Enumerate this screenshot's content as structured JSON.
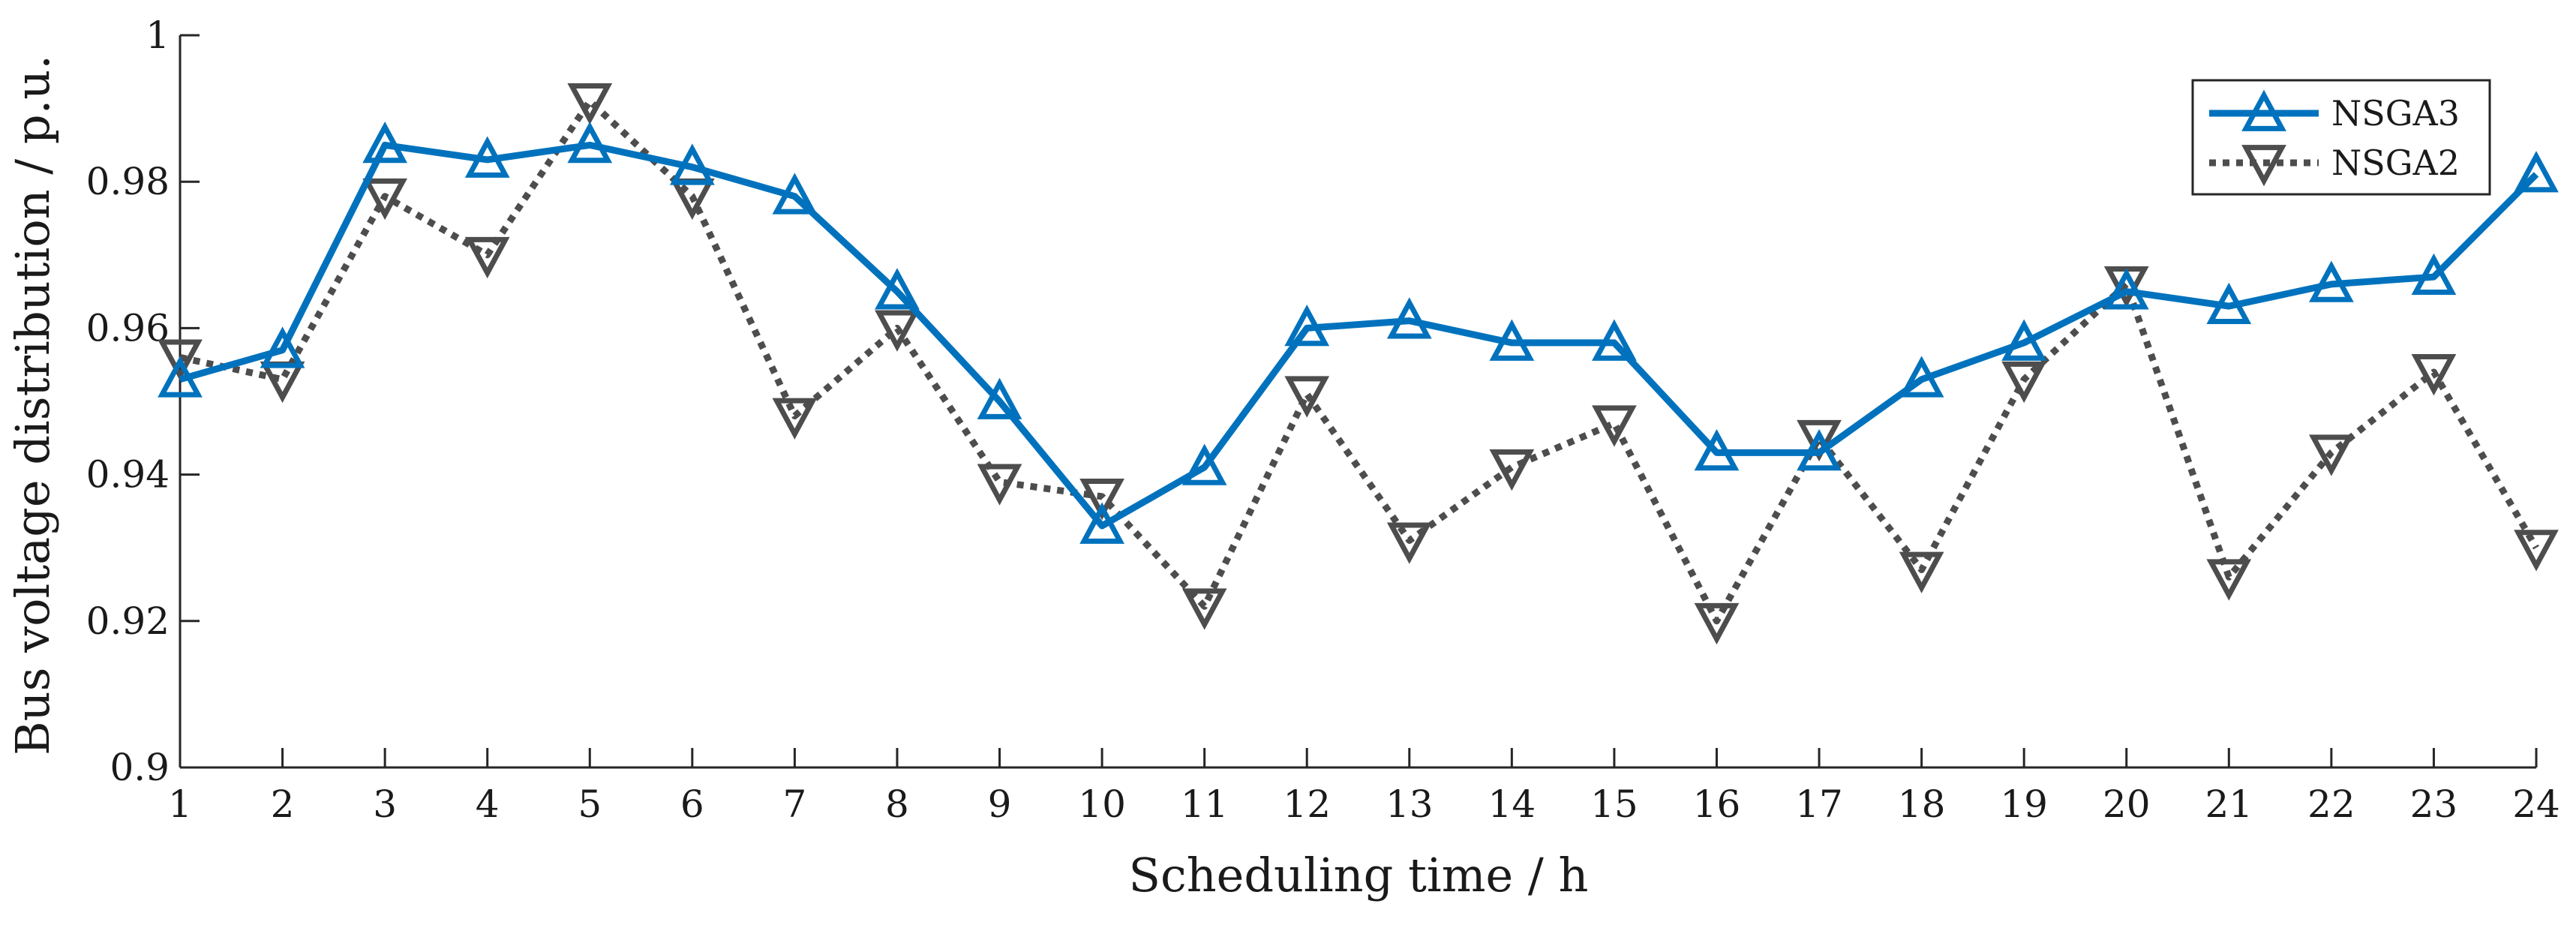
{
  "chart_data": {
    "type": "line",
    "title": "",
    "xlabel": "Scheduling time / h",
    "ylabel": "Bus voltage distribution / p.u.",
    "x": [
      1,
      2,
      3,
      4,
      5,
      6,
      7,
      8,
      9,
      10,
      11,
      12,
      13,
      14,
      15,
      16,
      17,
      18,
      19,
      20,
      21,
      22,
      23,
      24
    ],
    "xlim": [
      1,
      24
    ],
    "ylim": [
      0.9,
      1.0
    ],
    "yticks": [
      0.9,
      0.92,
      0.94,
      0.96,
      0.98,
      1
    ],
    "ytick_labels": [
      "0.9",
      "0.92",
      "0.94",
      "0.96",
      "0.98",
      "1"
    ],
    "xtick_labels": [
      "1",
      "2",
      "3",
      "4",
      "5",
      "6",
      "7",
      "8",
      "9",
      "10",
      "11",
      "12",
      "13",
      "14",
      "15",
      "16",
      "17",
      "18",
      "19",
      "20",
      "21",
      "22",
      "23",
      "24"
    ],
    "grid": false,
    "legend_position": "top-right",
    "series": [
      {
        "name": "NSGA3",
        "color": "#0072BD",
        "line_style": "solid",
        "marker": "triangle-up",
        "values": [
          0.953,
          0.957,
          0.985,
          0.983,
          0.985,
          0.982,
          0.978,
          0.965,
          0.95,
          0.933,
          0.941,
          0.96,
          0.961,
          0.958,
          0.958,
          0.943,
          0.943,
          0.953,
          0.958,
          0.965,
          0.963,
          0.966,
          0.967,
          0.981
        ]
      },
      {
        "name": "NSGA2",
        "color": "#4D4D4D",
        "line_style": "dotted",
        "marker": "triangle-down",
        "values": [
          0.956,
          0.953,
          0.978,
          0.97,
          0.991,
          0.978,
          0.948,
          0.96,
          0.939,
          0.937,
          0.922,
          0.951,
          0.931,
          0.941,
          0.947,
          0.92,
          0.945,
          0.927,
          0.953,
          0.966,
          0.926,
          0.943,
          0.954,
          0.93
        ]
      }
    ]
  }
}
